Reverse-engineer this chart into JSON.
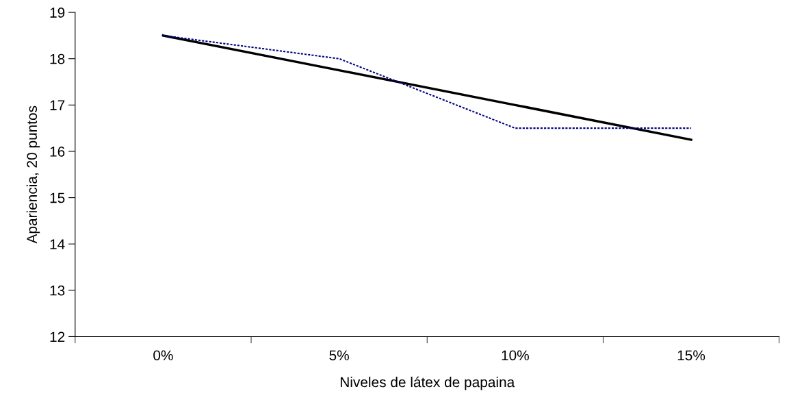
{
  "chart_data": {
    "type": "line",
    "xlabel": "Niveles de látex de papaina",
    "ylabel": "Apariencia, 20 puntos",
    "categories": [
      "0%",
      "5%",
      "10%",
      "15%"
    ],
    "series": [
      {
        "color": "#000080",
        "values": [
          18.5,
          18.0,
          16.5,
          16.5
        ],
        "line_style": "dotted"
      },
      {
        "color": "#000000",
        "values": [
          18.5,
          17.75,
          17.0,
          16.25
        ],
        "line_style": "solid"
      }
    ],
    "ylim": [
      12,
      19
    ],
    "yticks": [
      12,
      13,
      14,
      15,
      16,
      17,
      18,
      19
    ],
    "grid": false,
    "legend": false,
    "marker": "none"
  }
}
